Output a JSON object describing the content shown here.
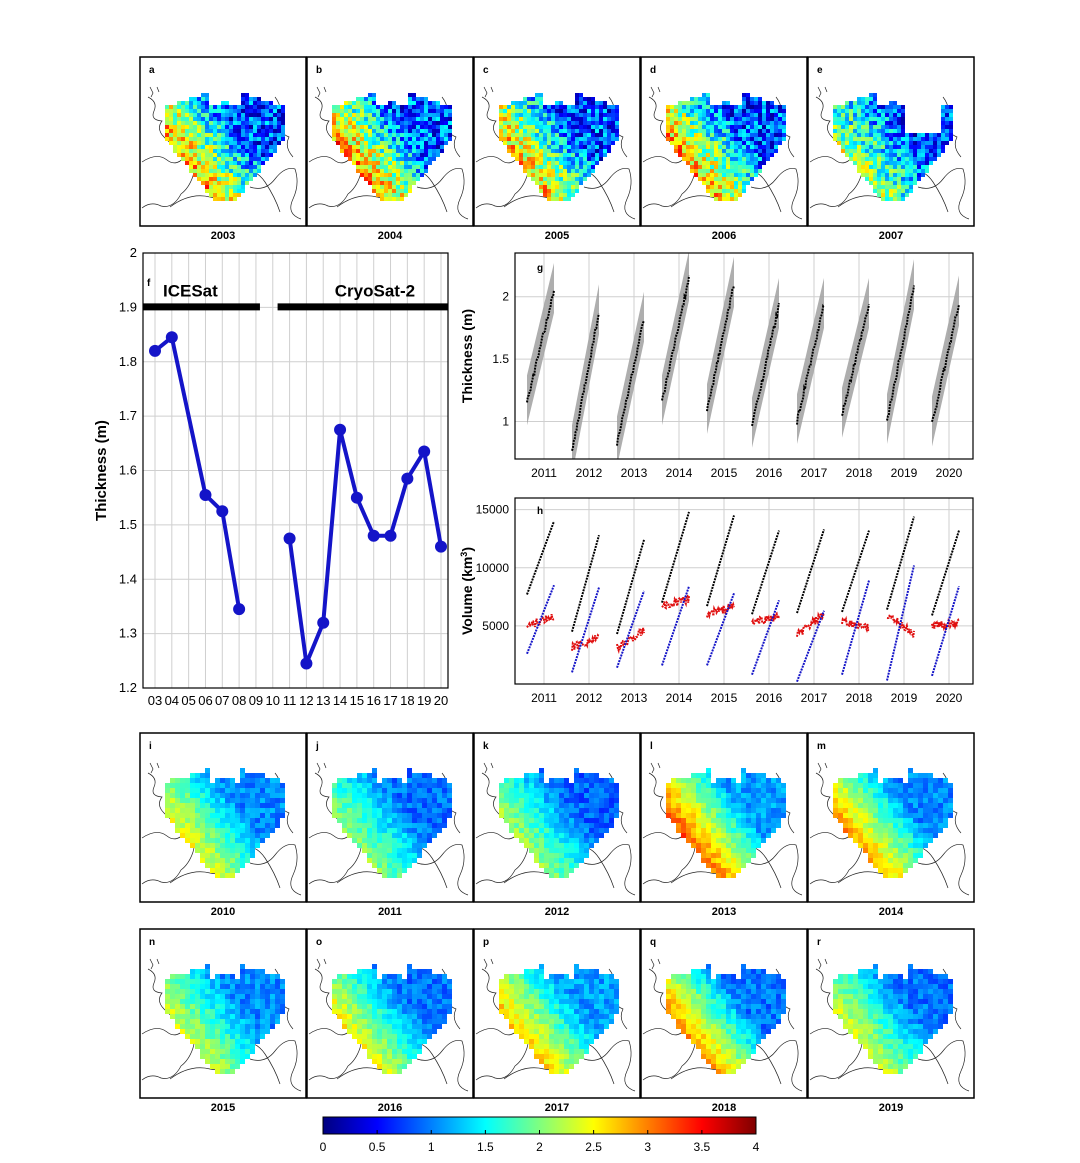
{
  "maps_top": [
    {
      "letter": "a",
      "year": "2003"
    },
    {
      "letter": "b",
      "year": "2004"
    },
    {
      "letter": "c",
      "year": "2005"
    },
    {
      "letter": "d",
      "year": "2006"
    },
    {
      "letter": "e",
      "year": "2007"
    }
  ],
  "maps_mid": [
    {
      "letter": "i",
      "year": "2010"
    },
    {
      "letter": "j",
      "year": "2011"
    },
    {
      "letter": "k",
      "year": "2012"
    },
    {
      "letter": "l",
      "year": "2013"
    },
    {
      "letter": "m",
      "year": "2014"
    }
  ],
  "maps_bot": [
    {
      "letter": "n",
      "year": "2015"
    },
    {
      "letter": "o",
      "year": "2016"
    },
    {
      "letter": "p",
      "year": "2017"
    },
    {
      "letter": "q",
      "year": "2018"
    },
    {
      "letter": "r",
      "year": "2019"
    }
  ],
  "colorbar": {
    "ticks": [
      "0",
      "0.5",
      "1",
      "1.5",
      "2",
      "2.5",
      "3",
      "3.5",
      "4"
    ],
    "colors": [
      "#00007f",
      "#0000ff",
      "#007fff",
      "#00ffff",
      "#7fff7f",
      "#ffff00",
      "#ff7f00",
      "#ff0000",
      "#7f0000"
    ]
  },
  "chart_data": [
    {
      "panel": "f",
      "type": "line",
      "ylabel": "Thickness (m)",
      "ylim": [
        1.2,
        2.0
      ],
      "yticks": [
        "1.2",
        "1.3",
        "1.4",
        "1.5",
        "1.6",
        "1.7",
        "1.8",
        "1.9",
        "2"
      ],
      "xticks": [
        "03",
        "04",
        "05",
        "06",
        "07",
        "08",
        "09",
        "10",
        "11",
        "12",
        "13",
        "14",
        "15",
        "16",
        "17",
        "18",
        "19",
        "20"
      ],
      "grid": true,
      "periods": [
        {
          "label": "ICESat",
          "from": "03",
          "to": "09"
        },
        {
          "label": "CryoSat-2",
          "from": "11",
          "to": "20"
        }
      ],
      "series": [
        {
          "segment": "ICESat",
          "x": [
            "03",
            "04",
            "06",
            "07",
            "08"
          ],
          "values": [
            1.82,
            1.845,
            1.555,
            1.525,
            1.345
          ]
        },
        {
          "segment": "CryoSat-2",
          "x": [
            "11",
            "12",
            "13",
            "14",
            "15",
            "16",
            "17",
            "18",
            "19",
            "20"
          ],
          "values": [
            1.475,
            1.245,
            1.32,
            1.675,
            1.55,
            1.48,
            1.48,
            1.585,
            1.635,
            1.46
          ]
        }
      ],
      "color": "#1414c8"
    },
    {
      "panel": "g",
      "type": "scatter",
      "ylabel": "Thickness (m)",
      "yticks": [
        "1",
        "1.5",
        "2"
      ],
      "ylim": [
        0.7,
        2.35
      ],
      "xticks": [
        "2011",
        "2012",
        "2013",
        "2014",
        "2015",
        "2016",
        "2017",
        "2018",
        "2019",
        "2020"
      ],
      "grid": true,
      "seasons": [
        {
          "year": "2011",
          "start": 1.15,
          "end": 2.05
        },
        {
          "year": "2012",
          "start": 0.75,
          "end": 1.88
        },
        {
          "year": "2013",
          "start": 0.82,
          "end": 1.82
        },
        {
          "year": "2014",
          "start": 1.15,
          "end": 2.15
        },
        {
          "year": "2015",
          "start": 1.08,
          "end": 2.1
        },
        {
          "year": "2016",
          "start": 0.97,
          "end": 1.93
        },
        {
          "year": "2017",
          "start": 1.0,
          "end": 1.93
        },
        {
          "year": "2018",
          "start": 1.05,
          "end": 1.93
        },
        {
          "year": "2019",
          "start": 1.0,
          "end": 2.08
        },
        {
          "year": "2020",
          "start": 0.98,
          "end": 1.95
        }
      ],
      "line_color": "#000000",
      "band_color": "#a0a0a0"
    },
    {
      "panel": "h",
      "type": "scatter",
      "ylabel": "Volume (km",
      "ylabel_sup": "3",
      "ylabel_end": ")",
      "yticks": [
        "5000",
        "10000",
        "15000"
      ],
      "ylim": [
        0,
        16000
      ],
      "xticks": [
        "2011",
        "2012",
        "2013",
        "2014",
        "2015",
        "2016",
        "2017",
        "2018",
        "2019",
        "2020"
      ],
      "grid": true,
      "series": [
        {
          "name": "black",
          "color": "#000000",
          "starts": [
            7700,
            4500,
            4300,
            7000,
            6700,
            6000,
            6100,
            6200,
            6400,
            5900
          ],
          "ends": [
            14000,
            12800,
            12400,
            14800,
            14500,
            13200,
            13300,
            13200,
            14400,
            13200
          ]
        },
        {
          "name": "red",
          "color": "#e01010",
          "starts": [
            5000,
            3200,
            3100,
            6700,
            6000,
            5300,
            4200,
            5300,
            6000,
            5000
          ],
          "ends": [
            5800,
            4000,
            4600,
            7300,
            6700,
            5800,
            6000,
            4800,
            4300,
            5200
          ]
        },
        {
          "name": "blue",
          "color": "#1414c8",
          "starts": [
            2600,
            1000,
            1400,
            1600,
            1600,
            800,
            200,
            800,
            300,
            700
          ],
          "ends": [
            8500,
            8300,
            8000,
            8400,
            7800,
            7200,
            6300,
            8900,
            10200,
            8400
          ]
        }
      ]
    }
  ]
}
